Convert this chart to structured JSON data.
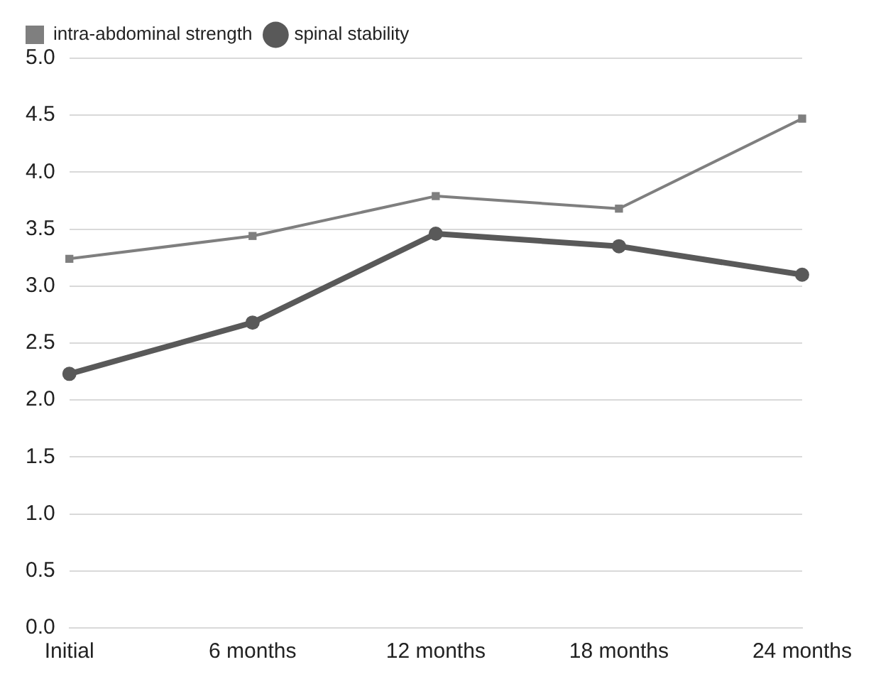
{
  "chart_data": {
    "type": "line",
    "categories": [
      "Initial",
      "6 months",
      "12 months",
      "18 months",
      "24 months"
    ],
    "series": [
      {
        "name": "intra-abdominal strength",
        "color": "#7f7f7f",
        "values": [
          3.24,
          3.44,
          3.79,
          3.68,
          4.47
        ],
        "marker": "square"
      },
      {
        "name": "spinal stability",
        "color": "#595959",
        "values": [
          2.23,
          2.68,
          3.46,
          3.35,
          3.1
        ],
        "marker": "circle"
      }
    ],
    "ylim": [
      0,
      5
    ],
    "yticks": [
      {
        "value": 0,
        "label": "0.0"
      },
      0.5,
      {
        "value": 1,
        "label": "1.0"
      },
      1.5,
      {
        "value": 2,
        "label": "2.0"
      },
      2.5,
      {
        "value": 3,
        "label": "3.0"
      },
      3.5,
      {
        "value": 4,
        "label": "4.0"
      },
      4.5,
      {
        "value": 5,
        "label": "5.0"
      }
    ],
    "grid": "y",
    "legend": "top left",
    "line_style": "solid"
  }
}
